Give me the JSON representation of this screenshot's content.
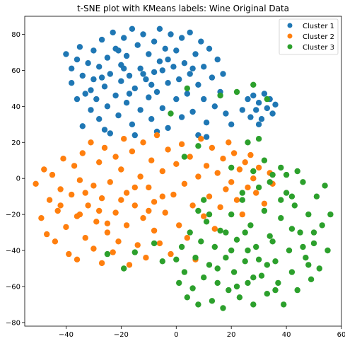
{
  "chart_data": {
    "type": "scatter",
    "title": "t-SNE plot with KMeans labels: Wine Original Data",
    "xlabel": "",
    "ylabel": "",
    "xlim": [
      -55,
      60
    ],
    "ylim": [
      -82,
      90
    ],
    "xticks": [
      -40,
      -20,
      0,
      20,
      40,
      60
    ],
    "yticks": [
      -80,
      -60,
      -40,
      -20,
      0,
      20,
      40,
      60,
      80
    ],
    "xtick_labels": [
      "−40",
      "−20",
      "0",
      "20",
      "40",
      "60"
    ],
    "ytick_labels": [
      "−80",
      "−60",
      "−40",
      "−20",
      "0",
      "20",
      "40",
      "60",
      "80"
    ],
    "grid": false,
    "legend_position": "top-right",
    "series": [
      {
        "name": "Cluster 1",
        "color": "#1f77b4",
        "points": [
          [
            -40,
            69
          ],
          [
            -38,
            61
          ],
          [
            -38,
            53
          ],
          [
            -36,
            66
          ],
          [
            -35,
            73
          ],
          [
            -34,
            57
          ],
          [
            -33,
            47
          ],
          [
            -32,
            64
          ],
          [
            -31,
            38
          ],
          [
            -30,
            71
          ],
          [
            -30,
            55
          ],
          [
            -29,
            44
          ],
          [
            -28,
            62
          ],
          [
            -28,
            33
          ],
          [
            -27,
            77
          ],
          [
            -26,
            51
          ],
          [
            -25,
            67
          ],
          [
            -25,
            40
          ],
          [
            -24,
            58
          ],
          [
            -23,
            81
          ],
          [
            -22,
            46
          ],
          [
            -22,
            72
          ],
          [
            -21,
            35
          ],
          [
            -20,
            63
          ],
          [
            -20,
            54
          ],
          [
            -19,
            78
          ],
          [
            -18,
            42
          ],
          [
            -18,
            68
          ],
          [
            -17,
            57
          ],
          [
            -16,
            83
          ],
          [
            -16,
            30
          ],
          [
            -15,
            50
          ],
          [
            -14,
            74
          ],
          [
            -13,
            61
          ],
          [
            -13,
            38
          ],
          [
            -12,
            80
          ],
          [
            -11,
            55
          ],
          [
            -10,
            45
          ],
          [
            -10,
            69
          ],
          [
            -9,
            33
          ],
          [
            -8,
            76
          ],
          [
            -8,
            59
          ],
          [
            -7,
            48
          ],
          [
            -6,
            83
          ],
          [
            -6,
            65
          ],
          [
            -5,
            39
          ],
          [
            -4,
            72
          ],
          [
            -3,
            53
          ],
          [
            -3,
            28
          ],
          [
            -2,
            80
          ],
          [
            -1,
            62
          ],
          [
            0,
            44
          ],
          [
            0,
            71
          ],
          [
            1,
            55
          ],
          [
            2,
            34
          ],
          [
            2,
            78
          ],
          [
            3,
            64
          ],
          [
            4,
            47
          ],
          [
            5,
            81
          ],
          [
            5,
            58
          ],
          [
            6,
            37
          ],
          [
            7,
            69
          ],
          [
            8,
            52
          ],
          [
            9,
            76
          ],
          [
            10,
            44
          ],
          [
            10,
            62
          ],
          [
            11,
            31
          ],
          [
            12,
            72
          ],
          [
            13,
            56
          ],
          [
            14,
            40
          ],
          [
            15,
            66
          ],
          [
            16,
            48
          ],
          [
            17,
            58
          ],
          [
            18,
            36
          ],
          [
            -36,
            44
          ],
          [
            -34,
            29
          ],
          [
            -26,
            27
          ],
          [
            -24,
            25
          ],
          [
            -15,
            24
          ],
          [
            -7,
            26
          ],
          [
            8,
            24
          ],
          [
            11,
            23
          ],
          [
            20,
            30
          ],
          [
            24,
            38
          ],
          [
            26,
            44
          ],
          [
            27,
            34
          ],
          [
            28,
            46
          ],
          [
            29,
            38
          ],
          [
            30,
            42
          ],
          [
            31,
            33
          ],
          [
            32,
            47
          ],
          [
            33,
            39
          ],
          [
            34,
            44
          ],
          [
            35,
            36
          ],
          [
            36,
            41
          ],
          [
            30,
            30
          ],
          [
            -19,
            61
          ],
          [
            -21,
            71
          ],
          [
            -5,
            60
          ],
          [
            -12,
            58
          ],
          [
            -27,
            56
          ],
          [
            -31,
            49
          ],
          [
            -3,
            66
          ],
          [
            6,
            61
          ],
          [
            -9,
            52
          ],
          [
            -17,
            47
          ]
        ]
      },
      {
        "name": "Cluster 2",
        "color": "#ff7f0e",
        "points": [
          [
            -51,
            -3
          ],
          [
            -49,
            -22
          ],
          [
            -48,
            5
          ],
          [
            -47,
            -31
          ],
          [
            -46,
            -12
          ],
          [
            -45,
            2
          ],
          [
            -44,
            -35
          ],
          [
            -43,
            -18
          ],
          [
            -42,
            -6
          ],
          [
            -41,
            11
          ],
          [
            -40,
            -27
          ],
          [
            -39,
            -42
          ],
          [
            -38,
            -9
          ],
          [
            -37,
            7
          ],
          [
            -36,
            -45
          ],
          [
            -36,
            -21
          ],
          [
            -35,
            -1
          ],
          [
            -34,
            14
          ],
          [
            -33,
            -33
          ],
          [
            -32,
            -15
          ],
          [
            -31,
            20
          ],
          [
            -30,
            -39
          ],
          [
            -30,
            -4
          ],
          [
            -29,
            -24
          ],
          [
            -28,
            9
          ],
          [
            -27,
            -47
          ],
          [
            -27,
            -11
          ],
          [
            -26,
            17
          ],
          [
            -25,
            -30
          ],
          [
            -24,
            -2
          ],
          [
            -23,
            -41
          ],
          [
            -22,
            12
          ],
          [
            -22,
            -19
          ],
          [
            -21,
            -35
          ],
          [
            -20,
            5
          ],
          [
            -19,
            22
          ],
          [
            -18,
            -26
          ],
          [
            -18,
            -8
          ],
          [
            -17,
            -48
          ],
          [
            -16,
            15
          ],
          [
            -15,
            -15
          ],
          [
            -14,
            -37
          ],
          [
            -13,
            1
          ],
          [
            -12,
            20
          ],
          [
            -12,
            -22
          ],
          [
            -11,
            -44
          ],
          [
            -10,
            -5
          ],
          [
            -9,
            10
          ],
          [
            -8,
            -29
          ],
          [
            -8,
            -13
          ],
          [
            -7,
            24
          ],
          [
            -6,
            -36
          ],
          [
            -5,
            4
          ],
          [
            -4,
            -19
          ],
          [
            -3,
            16
          ],
          [
            -2,
            -42
          ],
          [
            -1,
            -9
          ],
          [
            0,
            8
          ],
          [
            1,
            -26
          ],
          [
            2,
            19
          ],
          [
            3,
            -3
          ],
          [
            4,
            -33
          ],
          [
            5,
            12
          ],
          [
            6,
            -15
          ],
          [
            7,
            -45
          ],
          [
            8,
            1
          ],
          [
            9,
            22
          ],
          [
            10,
            -21
          ],
          [
            11,
            7
          ],
          [
            12,
            -10
          ],
          [
            13,
            17
          ],
          [
            14,
            -28
          ],
          [
            15,
            3
          ],
          [
            16,
            -16
          ],
          [
            17,
            11
          ],
          [
            18,
            -6
          ],
          [
            19,
            20
          ],
          [
            20,
            -2
          ],
          [
            21,
            14
          ],
          [
            22,
            -12
          ],
          [
            23,
            5
          ],
          [
            24,
            -20
          ],
          [
            25,
            9
          ],
          [
            26,
            -5
          ],
          [
            27,
            13
          ],
          [
            28,
            0
          ],
          [
            29,
            -8
          ],
          [
            30,
            6
          ],
          [
            32,
            -14
          ],
          [
            34,
            3
          ],
          [
            35,
            -3
          ],
          [
            -28,
            -18
          ],
          [
            -33,
            -8
          ],
          [
            -20,
            -12
          ],
          [
            -10,
            -18
          ],
          [
            -25,
            -25
          ],
          [
            -15,
            -5
          ],
          [
            -5,
            -10
          ],
          [
            -35,
            -20
          ],
          [
            -42,
            -15
          ]
        ]
      },
      {
        "name": "Cluster 3",
        "color": "#2ca02c",
        "points": [
          [
            0,
            -45
          ],
          [
            1,
            -58
          ],
          [
            2,
            -38
          ],
          [
            3,
            -52
          ],
          [
            4,
            -66
          ],
          [
            5,
            -30
          ],
          [
            6,
            -61
          ],
          [
            7,
            -44
          ],
          [
            8,
            -70
          ],
          [
            9,
            -35
          ],
          [
            10,
            -55
          ],
          [
            11,
            -24
          ],
          [
            12,
            -48
          ],
          [
            13,
            -68
          ],
          [
            14,
            -38
          ],
          [
            15,
            -58
          ],
          [
            16,
            -29
          ],
          [
            17,
            -72
          ],
          [
            18,
            -44
          ],
          [
            19,
            -62
          ],
          [
            20,
            -20
          ],
          [
            21,
            -52
          ],
          [
            22,
            -34
          ],
          [
            23,
            -66
          ],
          [
            24,
            -12
          ],
          [
            25,
            -46
          ],
          [
            26,
            -58
          ],
          [
            27,
            -26
          ],
          [
            28,
            -70
          ],
          [
            29,
            -38
          ],
          [
            30,
            -5
          ],
          [
            31,
            -54
          ],
          [
            32,
            -18
          ],
          [
            33,
            -64
          ],
          [
            34,
            -32
          ],
          [
            35,
            2
          ],
          [
            36,
            -46
          ],
          [
            37,
            -58
          ],
          [
            38,
            -22
          ],
          [
            39,
            -70
          ],
          [
            40,
            -8
          ],
          [
            41,
            -40
          ],
          [
            42,
            -52
          ],
          [
            43,
            -15
          ],
          [
            44,
            -62
          ],
          [
            45,
            -30
          ],
          [
            46,
            -2
          ],
          [
            47,
            -44
          ],
          [
            48,
            -20
          ],
          [
            49,
            -56
          ],
          [
            50,
            -36
          ],
          [
            51,
            -10
          ],
          [
            52,
            -50
          ],
          [
            53,
            -26
          ],
          [
            54,
            -4
          ],
          [
            55,
            -40
          ],
          [
            56,
            -20
          ],
          [
            44,
            4
          ],
          [
            40,
            2
          ],
          [
            38,
            6
          ],
          [
            -19,
            -50
          ],
          [
            -15,
            -41
          ],
          [
            -25,
            -42
          ],
          [
            -8,
            -36
          ],
          [
            -5,
            -46
          ],
          [
            20,
            -40
          ],
          [
            25,
            -30
          ],
          [
            30,
            -45
          ],
          [
            35,
            -35
          ],
          [
            15,
            -50
          ],
          [
            22,
            -60
          ],
          [
            28,
            -55
          ],
          [
            42,
            -28
          ],
          [
            46,
            -38
          ],
          [
            36,
            -62
          ],
          [
            33,
            -48
          ],
          [
            26,
            -40
          ],
          [
            18,
            -30
          ],
          [
            12,
            -20
          ],
          [
            10,
            -12
          ],
          [
            8,
            -18
          ],
          [
            24,
            -8
          ],
          [
            20,
            6
          ],
          [
            26,
            20
          ],
          [
            28,
            4
          ],
          [
            30,
            22
          ],
          [
            32,
            10
          ],
          [
            34,
            -2
          ],
          [
            22,
            48
          ],
          [
            16,
            46
          ],
          [
            28,
            52
          ],
          [
            33,
            44
          ],
          [
            4,
            50
          ],
          [
            -2,
            36
          ],
          [
            8,
            18
          ],
          [
            3,
            12
          ],
          [
            38,
            -12
          ],
          [
            42,
            -10
          ],
          [
            50,
            -30
          ],
          [
            48,
            -48
          ]
        ]
      }
    ]
  }
}
